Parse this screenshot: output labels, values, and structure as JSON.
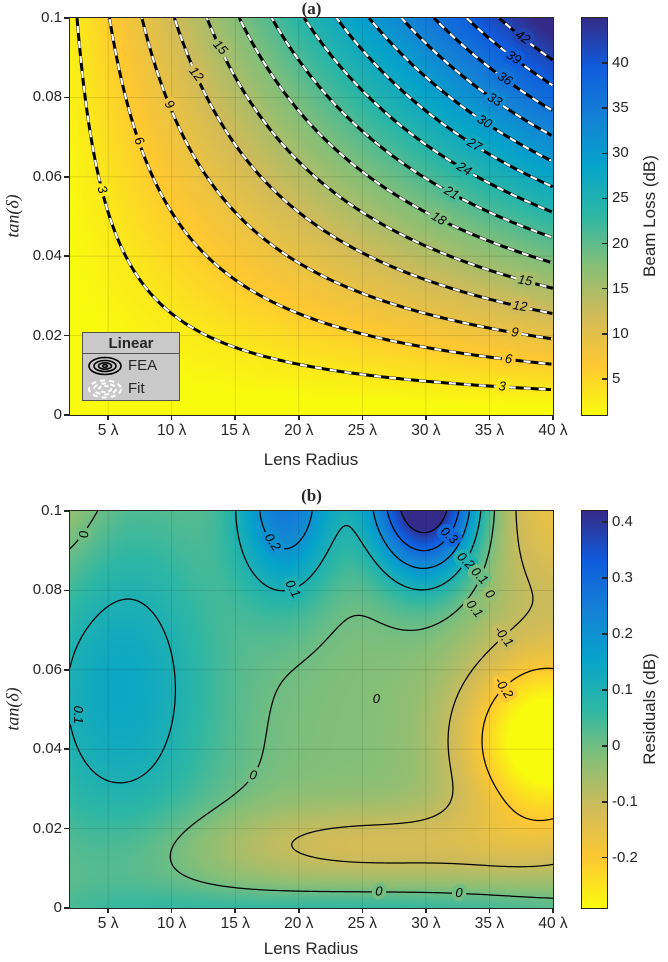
{
  "figure": {
    "background": "#ffffff"
  },
  "colormap": {
    "name": "parula-reversed",
    "stops": [
      "#352a87",
      "#0f5cdd",
      "#1481d6",
      "#06a4ca",
      "#2eb7a4",
      "#87bf77",
      "#d1bb59",
      "#fec832",
      "#f9fb0e"
    ]
  },
  "chart_data": [
    {
      "id": "a",
      "type": "contour",
      "title": "(a)",
      "xlabel": "Lens Radius",
      "ylabel": "tan(δ)",
      "xlim": [
        2,
        40
      ],
      "ylim": [
        0,
        0.1
      ],
      "grid": true,
      "xticks": [
        {
          "v": 5,
          "t": "5 λ"
        },
        {
          "v": 10,
          "t": "10 λ"
        },
        {
          "v": 15,
          "t": "15 λ"
        },
        {
          "v": 20,
          "t": "20 λ"
        },
        {
          "v": 25,
          "t": "25 λ"
        },
        {
          "v": 30,
          "t": "30 λ"
        },
        {
          "v": 35,
          "t": "35 λ"
        },
        {
          "v": 40,
          "t": "40 λ"
        }
      ],
      "yticks": [
        {
          "v": 0,
          "t": "0"
        },
        {
          "v": 0.02,
          "t": "0.02"
        },
        {
          "v": 0.04,
          "t": "0.04"
        },
        {
          "v": 0.06,
          "t": "0.06"
        },
        {
          "v": 0.08,
          "t": "0.08"
        },
        {
          "v": 0.1,
          "t": "0.1"
        }
      ],
      "colorbar": {
        "label": "Beam Loss (dB)",
        "range": [
          1,
          45
        ],
        "ticks": [
          {
            "v": 5,
            "t": "5"
          },
          {
            "v": 10,
            "t": "10"
          },
          {
            "v": 15,
            "t": "15"
          },
          {
            "v": 20,
            "t": "20"
          },
          {
            "v": 25,
            "t": "25"
          },
          {
            "v": 30,
            "t": "30"
          },
          {
            "v": 35,
            "t": "35"
          },
          {
            "v": 40,
            "t": "40"
          }
        ]
      },
      "levels": [
        3,
        6,
        9,
        12,
        15,
        18,
        21,
        24,
        27,
        30,
        33,
        36,
        39,
        42
      ],
      "field": {
        "kind": "product",
        "c": 11.75
      },
      "contour_labels": [
        {
          "v": 3,
          "x": 4.5,
          "y": 0.057,
          "a": 68
        },
        {
          "v": 6,
          "x": 7.4,
          "y": 0.069,
          "a": 60
        },
        {
          "v": 9,
          "x": 9.8,
          "y": 0.078,
          "a": 56
        },
        {
          "v": 12,
          "x": 11.9,
          "y": 0.086,
          "a": 52
        },
        {
          "v": 15,
          "x": 13.8,
          "y": 0.0925,
          "a": 48
        },
        {
          "v": 18,
          "x": 31.0,
          "y": 0.0494,
          "a": 30
        },
        {
          "v": 21,
          "x": 32.0,
          "y": 0.0559,
          "a": 30
        },
        {
          "v": 24,
          "x": 33.0,
          "y": 0.0619,
          "a": 30
        },
        {
          "v": 27,
          "x": 33.8,
          "y": 0.068,
          "a": 30
        },
        {
          "v": 30,
          "x": 34.6,
          "y": 0.0738,
          "a": 31
        },
        {
          "v": 33,
          "x": 35.4,
          "y": 0.0793,
          "a": 31
        },
        {
          "v": 36,
          "x": 36.2,
          "y": 0.0846,
          "a": 32
        },
        {
          "v": 39,
          "x": 36.9,
          "y": 0.09,
          "a": 32
        },
        {
          "v": 42,
          "x": 37.6,
          "y": 0.095,
          "a": 33
        },
        {
          "v": 15,
          "x": 37.8,
          "y": 0.0338,
          "a": 10
        },
        {
          "v": 12,
          "x": 37.4,
          "y": 0.0273,
          "a": 9
        },
        {
          "v": 9,
          "x": 37.0,
          "y": 0.0207,
          "a": 8
        },
        {
          "v": 6,
          "x": 36.5,
          "y": 0.014,
          "a": 7
        },
        {
          "v": 3,
          "x": 36.0,
          "y": 0.0071,
          "a": 5
        }
      ],
      "legend": {
        "title": "Linear",
        "entries": [
          {
            "label": "FEA",
            "style": "solid-black-contours"
          },
          {
            "label": "Fit",
            "style": "dashed-white-contours"
          }
        ]
      }
    },
    {
      "id": "b",
      "type": "contour",
      "title": "(b)",
      "xlabel": "Lens Radius",
      "ylabel": "tan(δ)",
      "xlim": [
        2,
        40
      ],
      "ylim": [
        0,
        0.1
      ],
      "grid": true,
      "xticks": [
        {
          "v": 5,
          "t": "5 λ"
        },
        {
          "v": 10,
          "t": "10 λ"
        },
        {
          "v": 15,
          "t": "15 λ"
        },
        {
          "v": 20,
          "t": "20 λ"
        },
        {
          "v": 25,
          "t": "25 λ"
        },
        {
          "v": 30,
          "t": "30 λ"
        },
        {
          "v": 35,
          "t": "35 λ"
        },
        {
          "v": 40,
          "t": "40 λ"
        }
      ],
      "yticks": [
        {
          "v": 0,
          "t": "0"
        },
        {
          "v": 0.02,
          "t": "0.02"
        },
        {
          "v": 0.04,
          "t": "0.04"
        },
        {
          "v": 0.06,
          "t": "0.06"
        },
        {
          "v": 0.08,
          "t": "0.08"
        },
        {
          "v": 0.1,
          "t": "0.1"
        }
      ],
      "colorbar": {
        "label": "Residuals (dB)",
        "range": [
          -0.29,
          0.42
        ],
        "ticks": [
          {
            "v": 0.4,
            "t": "0.4"
          },
          {
            "v": 0.3,
            "t": "0.3"
          },
          {
            "v": 0.2,
            "t": "0.2"
          },
          {
            "v": 0.1,
            "t": "0.1"
          },
          {
            "v": 0,
            "t": "0"
          },
          {
            "v": -0.1,
            "t": "-0.1"
          },
          {
            "v": -0.2,
            "t": "-0.2"
          }
        ]
      },
      "levels": [
        -0.2,
        -0.1,
        0,
        0.1,
        0.2,
        0.3,
        0.4
      ],
      "field": {
        "kind": "gaussians",
        "base": -0.02,
        "terms": [
          [
            0.55,
            30,
            4.3,
            0.104,
            0.02
          ],
          [
            0.28,
            19,
            4.0,
            0.103,
            0.024
          ],
          [
            0.16,
            6,
            8,
            0.055,
            0.045
          ],
          [
            0.09,
            25,
            22,
            -0.001,
            0.006
          ],
          [
            -0.33,
            39.5,
            6.5,
            0.042,
            0.022
          ],
          [
            -0.15,
            41,
            8,
            0.105,
            0.03
          ],
          [
            -0.1,
            26,
            16,
            0.016,
            0.01
          ],
          [
            -0.07,
            1,
            4,
            0.105,
            0.025
          ]
        ]
      },
      "contour_labels": [
        {
          "v": 0,
          "x": 3.0,
          "y": 0.089,
          "a": 85
        },
        {
          "v": 0.2,
          "x": 17.9,
          "y": 0.0917,
          "a": 55
        },
        {
          "v": 0.1,
          "x": 19.5,
          "y": 0.0808,
          "a": 62
        },
        {
          "v": 0.3,
          "x": 31.8,
          "y": 0.0924,
          "a": 42
        },
        {
          "v": 0.2,
          "x": 33.1,
          "y": 0.0874,
          "a": 44
        },
        {
          "v": 0.1,
          "x": 34.2,
          "y": 0.0836,
          "a": 46
        },
        {
          "v": 0.1,
          "x": 33.8,
          "y": 0.0753,
          "a": 52
        },
        {
          "v": 0,
          "x": 35.0,
          "y": 0.079,
          "a": 50
        },
        {
          "v": -0.1,
          "x": 36.1,
          "y": 0.0745,
          "a": 52
        },
        {
          "v": -0.2,
          "x": 36.1,
          "y": 0.0606,
          "a": 56
        },
        {
          "v": 0,
          "x": 26.1,
          "y": 0.0525,
          "a": 0
        },
        {
          "v": 0,
          "x": 16.4,
          "y": 0.0293,
          "a": 10
        },
        {
          "v": 0,
          "x": 26.3,
          "y": 0.0063,
          "a": 2
        },
        {
          "v": 0,
          "x": 32.6,
          "y": 0.002,
          "a": 2
        },
        {
          "v": 0.1,
          "x": 2.6,
          "y": 0.0487,
          "a": 90
        }
      ]
    }
  ]
}
